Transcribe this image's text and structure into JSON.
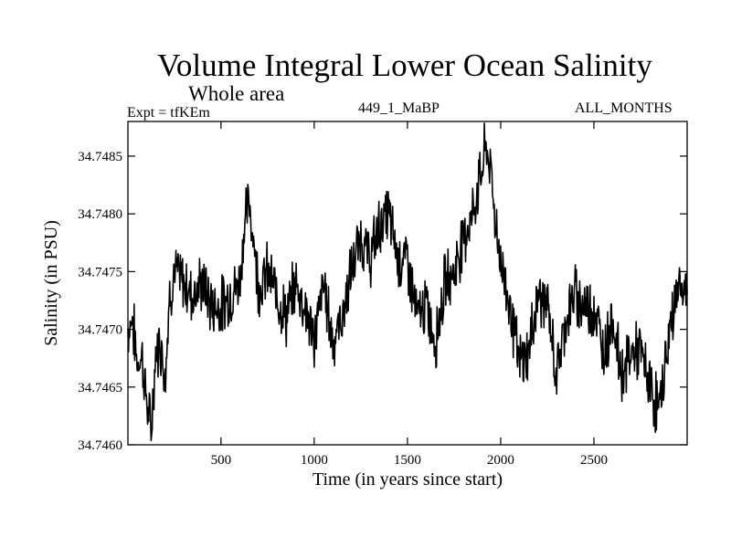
{
  "header": {
    "title": "Volume Integral Lower Ocean Salinity",
    "subtitle": "Whole area",
    "left_label": "Expt = tfKEm",
    "center_label": "449_1_MaBP",
    "right_label": "ALL_MONTHS"
  },
  "chart_data": {
    "type": "line",
    "title": "Volume Integral Lower Ocean Salinity",
    "subtitle": "Whole area",
    "xlabel": "Time (in years since start)",
    "ylabel": "Salinity (in PSU)",
    "xlim": [
      1,
      3000
    ],
    "ylim": [
      34.746,
      34.7488
    ],
    "x_ticks": [
      500,
      1000,
      1500,
      2000,
      2500
    ],
    "x_tick_labels": [
      "500",
      "1000",
      "1500",
      "2000",
      "2500"
    ],
    "y_ticks": [
      34.746,
      34.7465,
      34.747,
      34.7475,
      34.748,
      34.7485
    ],
    "y_tick_labels": [
      "34.7460",
      "34.7465",
      "34.7470",
      "34.7475",
      "34.7480",
      "34.7485"
    ],
    "grid": false,
    "legend": "none",
    "series": [
      {
        "color": "#000000",
        "x": [
          1,
          25,
          50,
          75,
          100,
          125,
          150,
          175,
          200,
          225,
          250,
          300,
          350,
          400,
          450,
          500,
          550,
          600,
          625,
          650,
          675,
          700,
          725,
          750,
          800,
          850,
          900,
          950,
          1000,
          1050,
          1100,
          1150,
          1200,
          1250,
          1300,
          1350,
          1400,
          1450,
          1500,
          1550,
          1600,
          1650,
          1700,
          1750,
          1800,
          1850,
          1900,
          1925,
          1950,
          1975,
          2000,
          2050,
          2100,
          2150,
          2200,
          2250,
          2300,
          2350,
          2400,
          2450,
          2500,
          2550,
          2600,
          2650,
          2700,
          2750,
          2800,
          2850,
          2900,
          2950,
          3000
        ],
        "values": [
          34.747,
          34.7471,
          34.7467,
          34.7468,
          34.7464,
          34.7461,
          34.7468,
          34.7469,
          34.7466,
          34.7473,
          34.7475,
          34.7474,
          34.7473,
          34.7474,
          34.7472,
          34.7472,
          34.7473,
          34.7474,
          34.7479,
          34.7481,
          34.7478,
          34.7474,
          34.7474,
          34.7475,
          34.7473,
          34.7471,
          34.7474,
          34.7472,
          34.7469,
          34.7474,
          34.7469,
          34.7471,
          34.7475,
          34.7478,
          34.7476,
          34.7479,
          34.748,
          34.7476,
          34.7476,
          34.7471,
          34.7472,
          34.7469,
          34.7474,
          34.7475,
          34.7478,
          34.748,
          34.7484,
          34.7486,
          34.7483,
          34.7479,
          34.7476,
          34.7472,
          34.7467,
          34.7468,
          34.7473,
          34.7472,
          34.7466,
          34.7471,
          34.7473,
          34.7472,
          34.7472,
          34.7468,
          34.7471,
          34.7466,
          34.7468,
          34.7468,
          34.7465,
          34.7463,
          34.7469,
          34.7474,
          34.7473
        ]
      }
    ]
  }
}
